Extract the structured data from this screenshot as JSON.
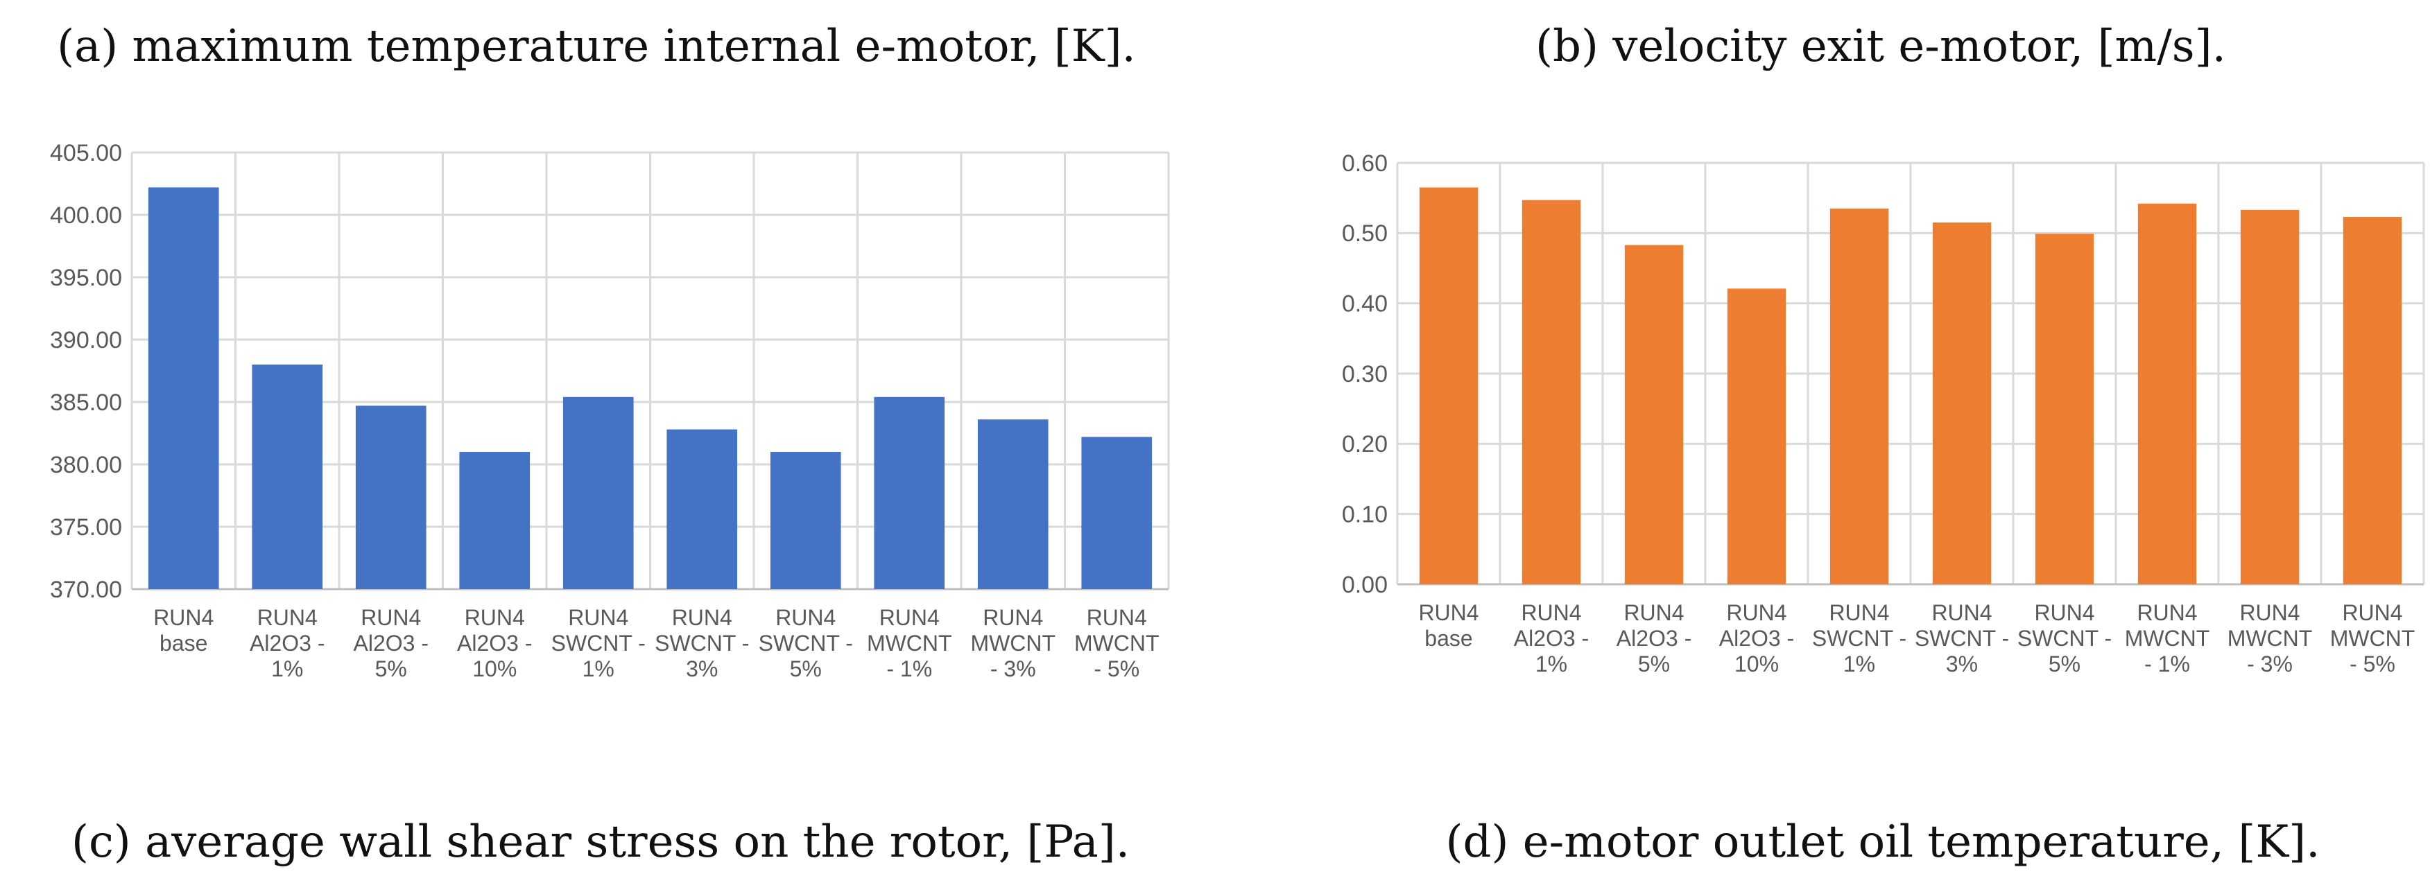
{
  "captions": {
    "a": "(a) maximum temperature internal e-motor, [K].",
    "b": "(b) velocity exit e-motor, [m/s].",
    "c": "(c) average wall shear stress on the rotor, [Pa].",
    "d": "(d) e-motor outlet oil temperature, [K]."
  },
  "chart_data": [
    {
      "id": "a",
      "type": "bar",
      "title": "(a) maximum temperature internal e-motor, [K].",
      "categories": [
        [
          "RUN4",
          "base"
        ],
        [
          "RUN4",
          "Al2O3 -",
          "1%"
        ],
        [
          "RUN4",
          "Al2O3 -",
          "5%"
        ],
        [
          "RUN4",
          "Al2O3 -",
          "10%"
        ],
        [
          "RUN4",
          "SWCNT -",
          "1%"
        ],
        [
          "RUN4",
          "SWCNT -",
          "3%"
        ],
        [
          "RUN4",
          "SWCNT -",
          "5%"
        ],
        [
          "RUN4",
          "MWCNT",
          "- 1%"
        ],
        [
          "RUN4",
          "MWCNT",
          "- 3%"
        ],
        [
          "RUN4",
          "MWCNT",
          "- 5%"
        ]
      ],
      "values": [
        402.2,
        388.0,
        384.7,
        381.0,
        385.4,
        382.8,
        381.0,
        385.4,
        383.6,
        382.2
      ],
      "ylim": [
        370,
        405
      ],
      "yticks": [
        "370.00",
        "375.00",
        "380.00",
        "385.00",
        "390.00",
        "395.00",
        "400.00",
        "405.00"
      ],
      "ytick_values": [
        370,
        375,
        380,
        385,
        390,
        395,
        400,
        405
      ],
      "color": "#4472C4",
      "grid": true,
      "xlabel": "",
      "ylabel": ""
    },
    {
      "id": "b",
      "type": "bar",
      "title": "(b) velocity exit e-motor, [m/s].",
      "categories": [
        [
          "RUN4",
          "base"
        ],
        [
          "RUN4",
          "Al2O3 -",
          "1%"
        ],
        [
          "RUN4",
          "Al2O3 -",
          "5%"
        ],
        [
          "RUN4",
          "Al2O3 -",
          "10%"
        ],
        [
          "RUN4",
          "SWCNT -",
          "1%"
        ],
        [
          "RUN4",
          "SWCNT -",
          "3%"
        ],
        [
          "RUN4",
          "SWCNT -",
          "5%"
        ],
        [
          "RUN4",
          "MWCNT",
          "- 1%"
        ],
        [
          "RUN4",
          "MWCNT",
          "- 3%"
        ],
        [
          "RUN4",
          "MWCNT",
          "- 5%"
        ]
      ],
      "values": [
        0.565,
        0.547,
        0.483,
        0.421,
        0.535,
        0.515,
        0.499,
        0.542,
        0.533,
        0.523
      ],
      "ylim": [
        0,
        0.6
      ],
      "yticks": [
        "0.00",
        "0.10",
        "0.20",
        "0.30",
        "0.40",
        "0.50",
        "0.60"
      ],
      "ytick_values": [
        0,
        0.1,
        0.2,
        0.3,
        0.4,
        0.5,
        0.6
      ],
      "color": "#ED7D31",
      "grid": true,
      "xlabel": "",
      "ylabel": ""
    }
  ]
}
